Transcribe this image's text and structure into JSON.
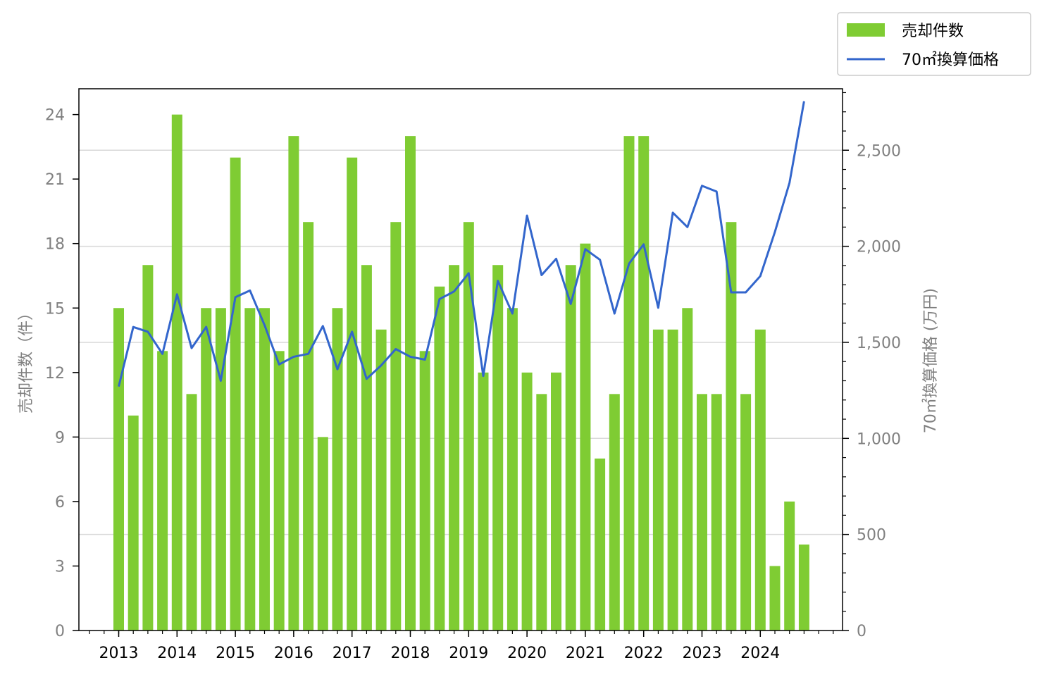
{
  "chart_data": {
    "type": "bar",
    "x_tick_labels": [
      "2013",
      "2014",
      "2015",
      "2016",
      "2017",
      "2018",
      "2019",
      "2020",
      "2021",
      "2022",
      "2023",
      "2024"
    ],
    "series": [
      {
        "name": "売却件数",
        "type": "bar",
        "axis": "left",
        "color": "#7fcc33",
        "values": [
          15,
          10,
          17,
          13,
          24,
          11,
          15,
          15,
          22,
          15,
          15,
          13,
          23,
          19,
          9,
          15,
          22,
          17,
          14,
          19,
          23,
          13,
          16,
          17,
          19,
          12,
          17,
          15,
          12,
          11,
          12,
          17,
          18,
          8,
          11,
          23,
          23,
          14,
          14,
          15,
          11,
          11,
          19,
          11,
          14,
          3,
          6,
          4
        ]
      },
      {
        "name": "70㎡換算価格",
        "type": "line",
        "axis": "right",
        "color": "#3366cc",
        "values": [
          1270,
          1580,
          1555,
          1440,
          1750,
          1470,
          1580,
          1300,
          1735,
          1770,
          1590,
          1385,
          1425,
          1440,
          1585,
          1360,
          1555,
          1310,
          1380,
          1465,
          1425,
          1410,
          1725,
          1765,
          1860,
          1325,
          1820,
          1650,
          2160,
          1850,
          1935,
          1700,
          1985,
          1930,
          1650,
          1910,
          2010,
          1680,
          2175,
          2100,
          2315,
          2285,
          1760,
          1760,
          1845,
          2075,
          2330,
          2755
        ]
      }
    ],
    "y_left": {
      "label": "売却件数（件）",
      "ticks": [
        "0",
        "3",
        "6",
        "9",
        "12",
        "15",
        "18",
        "21",
        "24"
      ],
      "ylim": [
        0,
        25.2
      ]
    },
    "y_right": {
      "label": "70㎡換算価格 (万円)",
      "ticks": [
        "0",
        "500",
        "1,000",
        "1,500",
        "2,000",
        "2,500"
      ],
      "ylim": [
        0,
        2820
      ]
    },
    "grid": "horizontal, right axis",
    "legend_position": "top-right, outside plot"
  }
}
